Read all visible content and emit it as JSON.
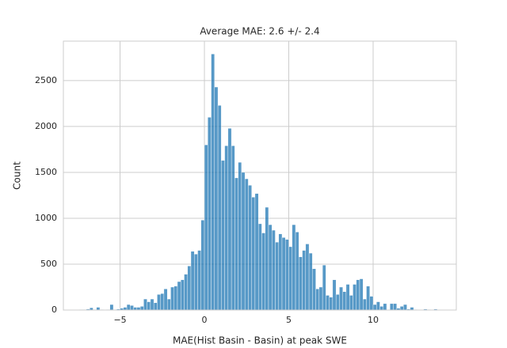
{
  "chart_data": {
    "type": "histogram",
    "title": "Average MAE: 2.6 +/- 2.4",
    "xlabel": "MAE(Hist Basin - Basin) at peak SWE",
    "ylabel": "Count",
    "color": "#1f77b4",
    "grid": true,
    "bins": [
      -7.6,
      -7.4,
      -7.2,
      -7,
      -6.8,
      -6.6,
      -6.4,
      -6.2,
      -6,
      -5.8,
      -5.6,
      -5.4,
      -5.2,
      -5,
      -4.8,
      -4.6,
      -4.4,
      -4.2,
      -4,
      -3.8,
      -3.6,
      -3.4,
      -3.2,
      -3,
      -2.8,
      -2.6,
      -2.4,
      -2.2,
      -2,
      -1.8,
      -1.6,
      -1.4,
      -1.2,
      -1,
      -0.8,
      -0.6,
      -0.4,
      -0.2,
      0,
      0.2,
      0.4,
      0.6,
      0.8,
      1,
      1.2,
      1.4,
      1.6,
      1.8,
      2,
      2.2,
      2.4,
      2.6,
      2.8,
      3,
      3.2,
      3.4,
      3.6,
      3.8,
      4,
      4.2,
      4.4,
      4.6,
      4.8,
      5,
      5.2,
      5.4,
      5.6,
      5.8,
      6,
      6.2,
      6.4,
      6.6,
      6.8,
      7,
      7.2,
      7.4,
      7.6,
      7.8,
      8,
      8.2,
      8.4,
      8.6,
      8.8,
      9,
      9.2,
      9.4,
      9.6,
      9.8,
      10,
      10.2,
      10.4,
      10.6,
      10.8,
      11,
      11.2,
      11.4,
      11.6,
      11.8,
      12,
      12.2,
      12.4,
      12.6,
      12.8,
      13,
      13.2,
      13.4,
      13.6,
      13.8,
      14
    ],
    "counts": [
      0,
      5,
      5,
      10,
      25,
      5,
      30,
      5,
      0,
      5,
      60,
      5,
      10,
      20,
      30,
      60,
      50,
      30,
      30,
      40,
      120,
      90,
      120,
      80,
      170,
      180,
      230,
      120,
      250,
      260,
      310,
      330,
      390,
      480,
      640,
      610,
      650,
      980,
      1800,
      2100,
      2790,
      2430,
      2230,
      1630,
      1790,
      1980,
      1790,
      1440,
      1610,
      1500,
      1430,
      1360,
      1230,
      1270,
      940,
      840,
      1120,
      930,
      870,
      740,
      830,
      790,
      770,
      690,
      930,
      850,
      580,
      650,
      720,
      620,
      450,
      230,
      250,
      490,
      160,
      140,
      330,
      170,
      250,
      200,
      280,
      160,
      280,
      330,
      340,
      120,
      260,
      150,
      60,
      90,
      40,
      70,
      0,
      70,
      70,
      20,
      40,
      60,
      10,
      30,
      5,
      0,
      0,
      10,
      5,
      0,
      10,
      0
    ],
    "xlim": [
      -8.36,
      14.93
    ],
    "ylim": [
      0,
      2930
    ],
    "xticks": [
      {
        "value": -5,
        "label": "−5"
      },
      0,
      5,
      10
    ],
    "yticks": [
      0,
      500,
      1000,
      1500,
      2000,
      2500
    ]
  }
}
